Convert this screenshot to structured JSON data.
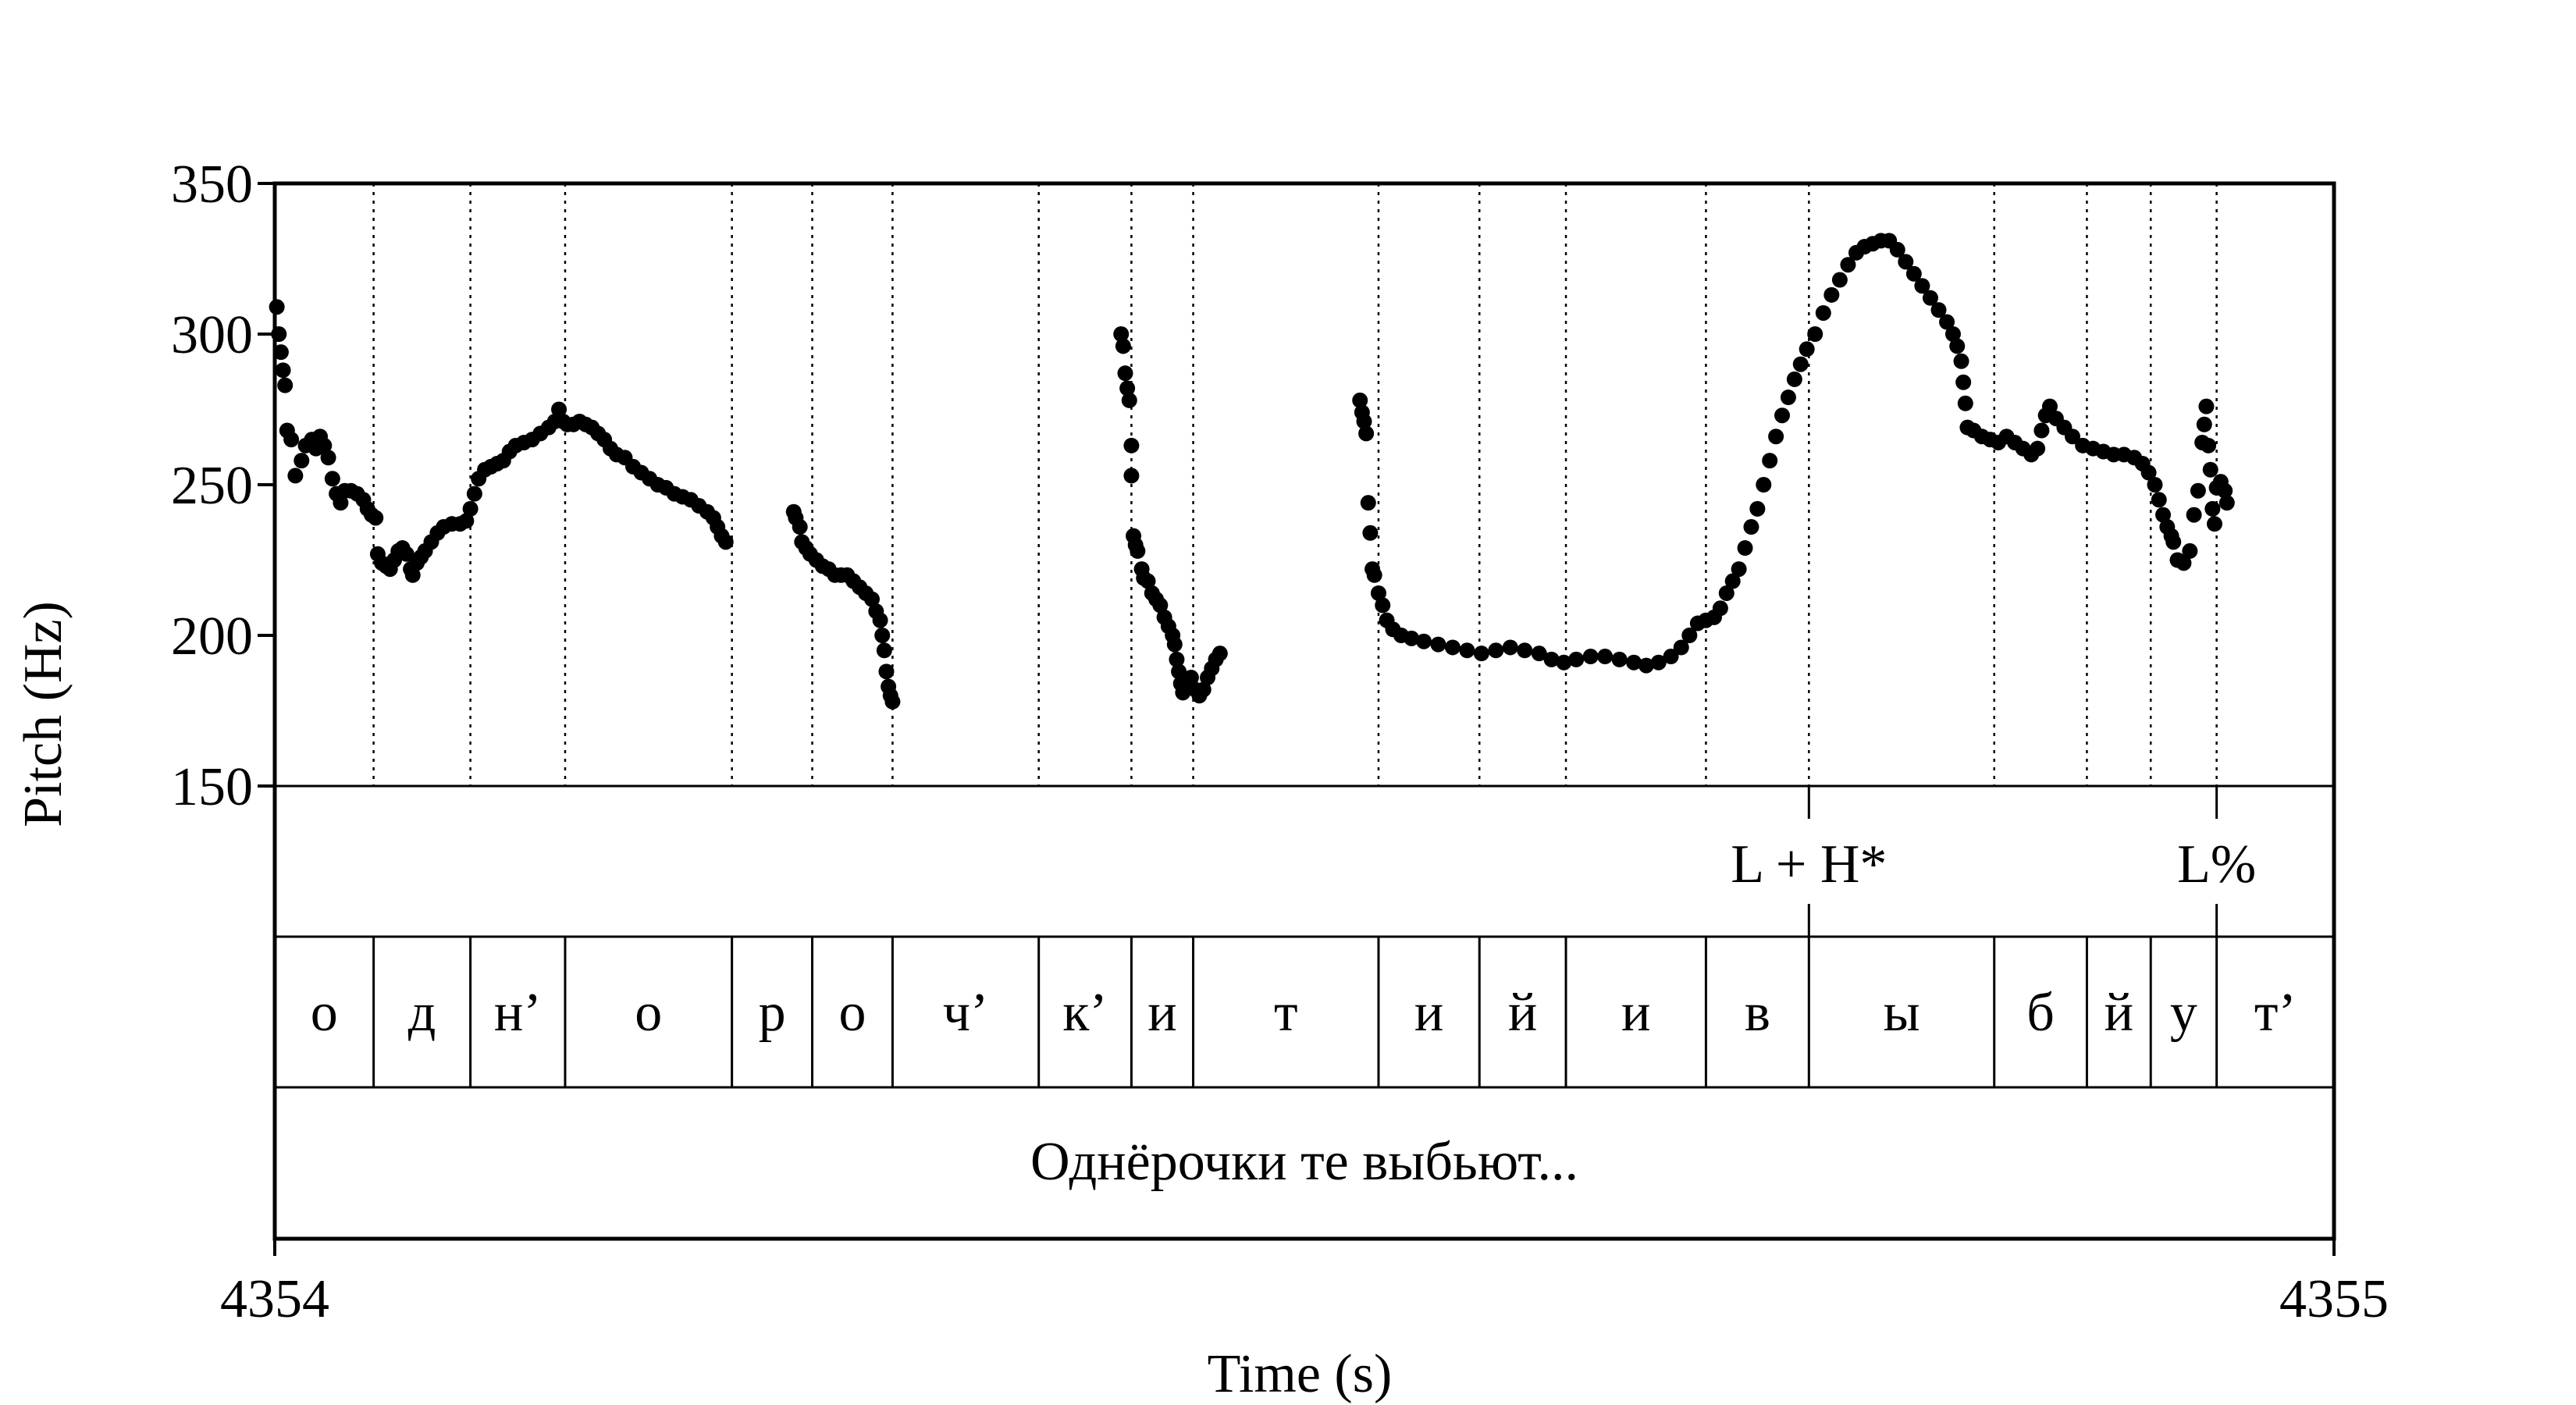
{
  "chart_data": {
    "type": "scatter",
    "xlabel": "Time (s)",
    "ylabel": "Pitch (Hz)",
    "xlim": [
      4354,
      4355
    ],
    "ylim": [
      150,
      350
    ],
    "xticks": [
      "4354",
      "4355"
    ],
    "yticks": [
      "150",
      "200",
      "250",
      "300",
      "350"
    ],
    "segment_boundaries": [
      4354.048,
      4354.095,
      4354.141,
      4354.222,
      4354.261,
      4354.3,
      4354.371,
      4354.416,
      4354.446,
      4354.536,
      4354.585,
      4354.627,
      4354.695,
      4354.745,
      4354.835,
      4354.88,
      4354.911,
      4354.943
    ],
    "tone_tier": [
      {
        "label": "L + H*",
        "time": 4354.745
      },
      {
        "label": "L%",
        "time": 4354.943
      }
    ],
    "segment_tier": [
      {
        "label": "о",
        "start": 4354.0,
        "end": 4354.048
      },
      {
        "label": "д",
        "start": 4354.048,
        "end": 4354.095
      },
      {
        "label": "н’",
        "start": 4354.095,
        "end": 4354.141
      },
      {
        "label": "о",
        "start": 4354.141,
        "end": 4354.222
      },
      {
        "label": "р",
        "start": 4354.222,
        "end": 4354.261
      },
      {
        "label": "о",
        "start": 4354.261,
        "end": 4354.3
      },
      {
        "label": "ч’",
        "start": 4354.3,
        "end": 4354.371
      },
      {
        "label": "к’",
        "start": 4354.371,
        "end": 4354.416
      },
      {
        "label": "и",
        "start": 4354.416,
        "end": 4354.446
      },
      {
        "label": "т",
        "start": 4354.446,
        "end": 4354.536
      },
      {
        "label": "и",
        "start": 4354.536,
        "end": 4354.585
      },
      {
        "label": "й",
        "start": 4354.585,
        "end": 4354.627
      },
      {
        "label": "и",
        "start": 4354.627,
        "end": 4354.695
      },
      {
        "label": "в",
        "start": 4354.695,
        "end": 4354.745
      },
      {
        "label": "ы",
        "start": 4354.745,
        "end": 4354.835
      },
      {
        "label": "б",
        "start": 4354.835,
        "end": 4354.88
      },
      {
        "label": "й",
        "start": 4354.88,
        "end": 4354.911
      },
      {
        "label": "у",
        "start": 4354.911,
        "end": 4354.943
      },
      {
        "label": "т’",
        "start": 4354.943,
        "end": 4355.0
      }
    ],
    "phrase_tier": [
      {
        "label": "Однёрочки те выбьют...",
        "start": 4354.0,
        "end": 4355.0
      }
    ],
    "pitch_segments": [
      [
        [
          4354.001,
          309
        ],
        [
          4354.002,
          300
        ],
        [
          4354.003,
          294
        ],
        [
          4354.004,
          288
        ],
        [
          4354.005,
          283
        ],
        [
          4354.006,
          268
        ],
        [
          4354.008,
          265
        ],
        [
          4354.01,
          253
        ],
        [
          4354.013,
          258
        ],
        [
          4354.015,
          263
        ],
        [
          4354.018,
          265
        ],
        [
          4354.02,
          262
        ],
        [
          4354.022,
          266
        ],
        [
          4354.024,
          263
        ],
        [
          4354.026,
          259
        ],
        [
          4354.028,
          252
        ],
        [
          4354.03,
          247
        ],
        [
          4354.032,
          244
        ],
        [
          4354.034,
          248
        ],
        [
          4354.037,
          248
        ],
        [
          4354.04,
          247
        ],
        [
          4354.043,
          245
        ],
        [
          4354.045,
          242
        ],
        [
          4354.047,
          240
        ],
        [
          4354.049,
          239
        ],
        [
          4354.05,
          227
        ],
        [
          4354.052,
          224
        ],
        [
          4354.054,
          223
        ],
        [
          4354.056,
          222
        ],
        [
          4354.058,
          225
        ],
        [
          4354.06,
          228
        ],
        [
          4354.062,
          229
        ],
        [
          4354.064,
          227
        ],
        [
          4354.066,
          222
        ],
        [
          4354.067,
          220
        ],
        [
          4354.069,
          224
        ],
        [
          4354.071,
          226
        ],
        [
          4354.073,
          228
        ],
        [
          4354.076,
          231
        ],
        [
          4354.079,
          234
        ],
        [
          4354.082,
          236
        ],
        [
          4354.086,
          237
        ],
        [
          4354.09,
          237
        ],
        [
          4354.093,
          238
        ],
        [
          4354.095,
          242
        ],
        [
          4354.097,
          247
        ],
        [
          4354.099,
          252
        ],
        [
          4354.102,
          255
        ],
        [
          4354.105,
          256
        ],
        [
          4354.108,
          257
        ],
        [
          4354.111,
          258
        ],
        [
          4354.114,
          261
        ],
        [
          4354.117,
          263
        ],
        [
          4354.121,
          264
        ],
        [
          4354.125,
          265
        ],
        [
          4354.129,
          267
        ],
        [
          4354.133,
          269
        ],
        [
          4354.136,
          271
        ],
        [
          4354.138,
          275
        ],
        [
          4354.14,
          271
        ],
        [
          4354.142,
          270
        ],
        [
          4354.145,
          270
        ],
        [
          4354.148,
          271
        ],
        [
          4354.151,
          270
        ],
        [
          4354.154,
          269
        ],
        [
          4354.157,
          267
        ],
        [
          4354.16,
          265
        ],
        [
          4354.163,
          262
        ],
        [
          4354.166,
          260
        ],
        [
          4354.17,
          259
        ],
        [
          4354.174,
          256
        ],
        [
          4354.178,
          254
        ],
        [
          4354.182,
          252
        ],
        [
          4354.186,
          250
        ],
        [
          4354.19,
          249
        ],
        [
          4354.194,
          247
        ],
        [
          4354.198,
          246
        ],
        [
          4354.202,
          245
        ],
        [
          4354.206,
          243
        ],
        [
          4354.21,
          241
        ],
        [
          4354.213,
          239
        ],
        [
          4354.215,
          236
        ],
        [
          4354.217,
          233
        ],
        [
          4354.219,
          231
        ]
      ],
      [
        [
          4354.252,
          241
        ],
        [
          4354.253,
          239
        ],
        [
          4354.255,
          236
        ],
        [
          4354.256,
          231
        ],
        [
          4354.258,
          229
        ],
        [
          4354.26,
          227
        ],
        [
          4354.263,
          225
        ],
        [
          4354.266,
          223
        ],
        [
          4354.269,
          222
        ],
        [
          4354.272,
          220
        ],
        [
          4354.275,
          220
        ],
        [
          4354.278,
          220
        ],
        [
          4354.281,
          218
        ],
        [
          4354.284,
          216
        ],
        [
          4354.287,
          214
        ],
        [
          4354.29,
          212
        ],
        [
          4354.292,
          208
        ],
        [
          4354.294,
          205
        ],
        [
          4354.295,
          200
        ],
        [
          4354.296,
          195
        ],
        [
          4354.297,
          188
        ],
        [
          4354.298,
          183
        ],
        [
          4354.299,
          180
        ],
        [
          4354.3,
          178
        ]
      ],
      [
        [
          4354.411,
          300
        ],
        [
          4354.412,
          296
        ],
        [
          4354.413,
          287
        ],
        [
          4354.414,
          282
        ],
        [
          4354.415,
          278
        ],
        [
          4354.416,
          263
        ],
        [
          4354.416,
          253
        ],
        [
          4354.417,
          233
        ],
        [
          4354.418,
          230
        ],
        [
          4354.419,
          228
        ],
        [
          4354.421,
          222
        ],
        [
          4354.422,
          219
        ],
        [
          4354.424,
          218
        ],
        [
          4354.426,
          214
        ],
        [
          4354.428,
          212
        ],
        [
          4354.43,
          210
        ],
        [
          4354.432,
          206
        ],
        [
          4354.434,
          203
        ],
        [
          4354.436,
          200
        ],
        [
          4354.437,
          197
        ],
        [
          4354.438,
          192
        ],
        [
          4354.439,
          188
        ],
        [
          4354.44,
          184
        ],
        [
          4354.441,
          181
        ],
        [
          4354.443,
          184
        ],
        [
          4354.445,
          186
        ],
        [
          4354.447,
          182
        ],
        [
          4354.449,
          180
        ],
        [
          4354.451,
          182
        ],
        [
          4354.453,
          186
        ],
        [
          4354.455,
          189
        ],
        [
          4354.457,
          192
        ],
        [
          4354.459,
          194
        ]
      ],
      [
        [
          4354.527,
          278
        ],
        [
          4354.528,
          274
        ],
        [
          4354.529,
          271
        ],
        [
          4354.53,
          267
        ],
        [
          4354.531,
          244
        ],
        [
          4354.532,
          234
        ],
        [
          4354.533,
          222
        ],
        [
          4354.534,
          220
        ],
        [
          4354.536,
          214
        ],
        [
          4354.538,
          210
        ],
        [
          4354.54,
          205
        ],
        [
          4354.543,
          202
        ],
        [
          4354.547,
          200
        ],
        [
          4354.552,
          199
        ],
        [
          4354.558,
          198
        ],
        [
          4354.565,
          197
        ],
        [
          4354.572,
          196
        ],
        [
          4354.579,
          195
        ],
        [
          4354.586,
          194
        ],
        [
          4354.593,
          195
        ],
        [
          4354.6,
          196
        ],
        [
          4354.607,
          195
        ],
        [
          4354.614,
          194
        ],
        [
          4354.62,
          192
        ],
        [
          4354.626,
          191
        ],
        [
          4354.632,
          192
        ],
        [
          4354.639,
          193
        ],
        [
          4354.646,
          193
        ],
        [
          4354.653,
          192
        ],
        [
          4354.66,
          191
        ],
        [
          4354.666,
          190
        ],
        [
          4354.672,
          191
        ],
        [
          4354.678,
          193
        ],
        [
          4354.683,
          196
        ],
        [
          4354.687,
          200
        ],
        [
          4354.691,
          204
        ],
        [
          4354.695,
          205
        ],
        [
          4354.699,
          206
        ],
        [
          4354.702,
          209
        ],
        [
          4354.705,
          214
        ],
        [
          4354.708,
          218
        ],
        [
          4354.711,
          222
        ],
        [
          4354.714,
          229
        ],
        [
          4354.717,
          236
        ],
        [
          4354.72,
          242
        ],
        [
          4354.723,
          250
        ],
        [
          4354.726,
          258
        ],
        [
          4354.729,
          266
        ],
        [
          4354.732,
          273
        ],
        [
          4354.735,
          279
        ],
        [
          4354.738,
          285
        ],
        [
          4354.741,
          290
        ],
        [
          4354.744,
          295
        ],
        [
          4354.748,
          300
        ],
        [
          4354.752,
          307
        ],
        [
          4354.756,
          313
        ],
        [
          4354.76,
          318
        ],
        [
          4354.764,
          323
        ],
        [
          4354.768,
          327
        ],
        [
          4354.772,
          329
        ],
        [
          4354.776,
          330
        ],
        [
          4354.78,
          331
        ],
        [
          4354.784,
          331
        ],
        [
          4354.788,
          328
        ],
        [
          4354.792,
          324
        ],
        [
          4354.796,
          320
        ],
        [
          4354.8,
          316
        ],
        [
          4354.804,
          312
        ],
        [
          4354.808,
          308
        ],
        [
          4354.812,
          304
        ],
        [
          4354.815,
          300
        ],
        [
          4354.817,
          296
        ],
        [
          4354.819,
          291
        ],
        [
          4354.82,
          284
        ],
        [
          4354.821,
          277
        ],
        [
          4354.822,
          269
        ],
        [
          4354.825,
          268
        ],
        [
          4354.829,
          266
        ],
        [
          4354.833,
          265
        ],
        [
          4354.837,
          264
        ],
        [
          4354.841,
          266
        ],
        [
          4354.845,
          264
        ],
        [
          4354.849,
          262
        ],
        [
          4354.853,
          260
        ],
        [
          4354.856,
          262
        ],
        [
          4354.858,
          268
        ],
        [
          4354.86,
          273
        ],
        [
          4354.862,
          276
        ],
        [
          4354.865,
          272
        ],
        [
          4354.869,
          269
        ],
        [
          4354.873,
          266
        ],
        [
          4354.878,
          263
        ],
        [
          4354.883,
          262
        ],
        [
          4354.888,
          261
        ],
        [
          4354.893,
          260
        ],
        [
          4354.898,
          260
        ],
        [
          4354.903,
          259
        ],
        [
          4354.907,
          257
        ],
        [
          4354.91,
          254
        ],
        [
          4354.913,
          250
        ],
        [
          4354.915,
          245
        ],
        [
          4354.917,
          240
        ],
        [
          4354.919,
          236
        ],
        [
          4354.921,
          233
        ],
        [
          4354.922,
          231
        ]
      ],
      [
        [
          4354.924,
          225
        ],
        [
          4354.927,
          224
        ],
        [
          4354.93,
          228
        ],
        [
          4354.932,
          240
        ],
        [
          4354.934,
          248
        ],
        [
          4354.936,
          264
        ],
        [
          4354.937,
          270
        ],
        [
          4354.938,
          276
        ],
        [
          4354.939,
          263
        ],
        [
          4354.94,
          255
        ],
        [
          4354.941,
          242
        ],
        [
          4354.942,
          237
        ],
        [
          4354.943,
          249
        ],
        [
          4354.945,
          251
        ],
        [
          4354.947,
          248
        ],
        [
          4354.948,
          244
        ]
      ]
    ]
  }
}
